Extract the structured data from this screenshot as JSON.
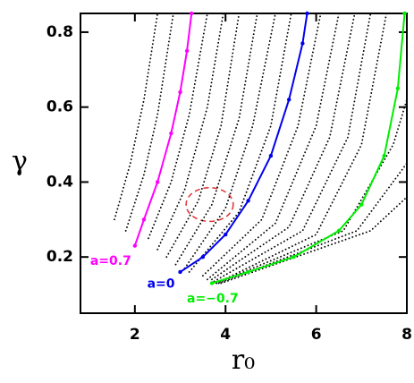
{
  "chart_data": {
    "type": "line",
    "x_label": "r₀",
    "y_label": "γ",
    "xlim": [
      0.8,
      8.0
    ],
    "ylim": [
      0.05,
      0.85
    ],
    "xticks": [
      2,
      4,
      6,
      8
    ],
    "yticks": [
      0.2,
      0.4,
      0.6,
      0.8
    ],
    "series": [
      {
        "color": "#000000",
        "style": "dotted",
        "x": [
          1.55,
          1.9,
          2.2,
          2.5
        ],
        "values": [
          0.3,
          0.45,
          0.62,
          0.85
        ]
      },
      {
        "color": "#000000",
        "style": "dotted",
        "x": [
          1.8,
          2.2,
          2.5,
          2.85
        ],
        "values": [
          0.27,
          0.42,
          0.58,
          0.85
        ]
      },
      {
        "color": "#000000",
        "style": "dotted",
        "x": [
          2.3,
          2.8,
          3.2,
          3.6
        ],
        "values": [
          0.25,
          0.4,
          0.58,
          0.85
        ]
      },
      {
        "color": "#000000",
        "style": "dotted",
        "x": [
          2.5,
          3.1,
          3.6,
          3.95
        ],
        "values": [
          0.22,
          0.38,
          0.6,
          0.85
        ]
      },
      {
        "color": "#000000",
        "style": "dotted",
        "x": [
          2.7,
          3.4,
          3.9,
          4.3
        ],
        "values": [
          0.2,
          0.35,
          0.55,
          0.85
        ]
      },
      {
        "color": "#000000",
        "style": "dotted",
        "x": [
          2.9,
          3.7,
          4.3,
          4.7
        ],
        "values": [
          0.18,
          0.34,
          0.57,
          0.85
        ]
      },
      {
        "color": "#000000",
        "style": "dotted",
        "x": [
          3.1,
          4.0,
          4.6,
          5.1
        ],
        "values": [
          0.17,
          0.33,
          0.55,
          0.85
        ]
      },
      {
        "color": "#000000",
        "style": "dotted",
        "x": [
          3.2,
          4.3,
          5.0,
          5.45
        ],
        "values": [
          0.16,
          0.32,
          0.55,
          0.85
        ]
      },
      {
        "color": "#000000",
        "style": "dotted",
        "x": [
          3.5,
          4.8,
          5.6,
          6.1
        ],
        "values": [
          0.15,
          0.3,
          0.55,
          0.85
        ]
      },
      {
        "color": "#000000",
        "style": "dotted",
        "x": [
          3.6,
          5.1,
          6.0,
          6.5
        ],
        "values": [
          0.14,
          0.29,
          0.55,
          0.85
        ]
      },
      {
        "color": "#000000",
        "style": "dotted",
        "x": [
          3.7,
          5.4,
          6.3,
          6.85
        ],
        "values": [
          0.14,
          0.28,
          0.52,
          0.85
        ]
      },
      {
        "color": "#000000",
        "style": "dotted",
        "x": [
          3.75,
          5.7,
          6.7,
          7.2
        ],
        "values": [
          0.135,
          0.27,
          0.52,
          0.85
        ]
      },
      {
        "color": "#000000",
        "style": "dotted",
        "x": [
          3.8,
          6.0,
          7.0,
          7.55
        ],
        "values": [
          0.13,
          0.26,
          0.5,
          0.85
        ]
      },
      {
        "color": "#000000",
        "style": "dotted",
        "x": [
          3.8,
          6.6,
          7.7,
          8.0
        ],
        "values": [
          0.13,
          0.27,
          0.5,
          0.62
        ]
      },
      {
        "color": "#000000",
        "style": "dotted",
        "x": [
          3.85,
          6.9,
          8.0
        ],
        "values": [
          0.13,
          0.27,
          0.45
        ]
      },
      {
        "color": "#000000",
        "style": "dotted",
        "x": [
          3.9,
          7.2,
          8.0
        ],
        "values": [
          0.13,
          0.27,
          0.36
        ]
      },
      {
        "name": "a=0.7",
        "color": "#ff00ff",
        "style": "solid",
        "x": [
          2.0,
          2.2,
          2.5,
          2.8,
          3.0,
          3.15,
          3.25
        ],
        "values": [
          0.23,
          0.3,
          0.4,
          0.53,
          0.64,
          0.75,
          0.85
        ]
      },
      {
        "name": "a=0",
        "color": "#0000ee",
        "style": "solid",
        "x": [
          3.0,
          3.5,
          4.0,
          4.5,
          5.0,
          5.4,
          5.7,
          5.8
        ],
        "values": [
          0.16,
          0.2,
          0.26,
          0.35,
          0.47,
          0.62,
          0.77,
          0.85
        ]
      },
      {
        "name": "a=−0.7",
        "color": "#00ee00",
        "style": "solid",
        "x": [
          3.7,
          4.5,
          5.5,
          6.5,
          7.0,
          7.5,
          7.8,
          7.95
        ],
        "values": [
          0.13,
          0.16,
          0.2,
          0.27,
          0.34,
          0.47,
          0.65,
          0.85
        ]
      }
    ],
    "ellipse": {
      "cx": 3.65,
      "cy": 0.34,
      "rx": 0.52,
      "ry": 0.045,
      "color": "#e03030"
    }
  }
}
